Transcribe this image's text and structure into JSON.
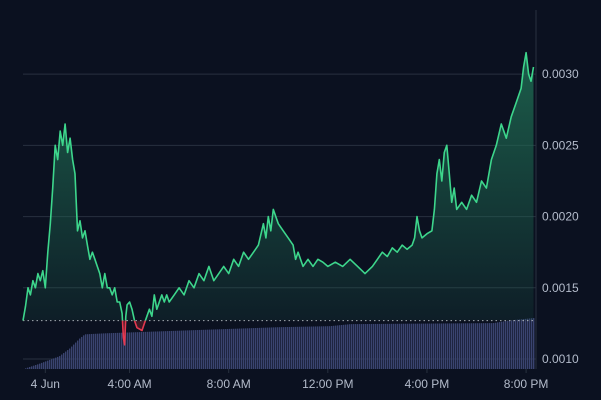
{
  "chart_data": {
    "type": "area",
    "baseline": 0.00127,
    "colors": {
      "background": "#0b1120",
      "grid": "#28313f",
      "line_up": "#3dd68c",
      "line_down": "#e5384f",
      "fill_up_top": "#1f6b52",
      "fill_down": "#5b1f2a",
      "baseline": "#c9ced6",
      "volume": "#3a4470",
      "tick": "#b4bccb"
    },
    "x_ticks": [
      {
        "label": "4 Jun",
        "hour": 0.6
      },
      {
        "label": "4:00 AM",
        "hour": 4.0
      },
      {
        "label": "8:00 AM",
        "hour": 8.0
      },
      {
        "label": "12:00 PM",
        "hour": 12.0
      },
      {
        "label": "4:00 PM",
        "hour": 16.0
      },
      {
        "label": "8:00 PM",
        "hour": 20.0
      }
    ],
    "x_range_hours": [
      -0.3,
      20.4
    ],
    "y_ticks": [
      "0.0030",
      "0.0025",
      "0.0020",
      "0.0015",
      "0.0010"
    ],
    "ylim": [
      0.00093,
      0.00345
    ],
    "price_series": [
      [
        -0.3,
        0.00127
      ],
      [
        -0.2,
        0.00137
      ],
      [
        -0.1,
        0.0015
      ],
      [
        0.0,
        0.00145
      ],
      [
        0.1,
        0.00155
      ],
      [
        0.2,
        0.0015
      ],
      [
        0.3,
        0.0016
      ],
      [
        0.4,
        0.00155
      ],
      [
        0.5,
        0.00162
      ],
      [
        0.6,
        0.0015
      ],
      [
        0.7,
        0.00175
      ],
      [
        0.8,
        0.00195
      ],
      [
        0.9,
        0.0022
      ],
      [
        1.0,
        0.0025
      ],
      [
        1.1,
        0.0024
      ],
      [
        1.2,
        0.0026
      ],
      [
        1.3,
        0.0025
      ],
      [
        1.4,
        0.00265
      ],
      [
        1.5,
        0.00245
      ],
      [
        1.6,
        0.00255
      ],
      [
        1.7,
        0.0024
      ],
      [
        1.8,
        0.0023
      ],
      [
        1.9,
        0.0019
      ],
      [
        2.0,
        0.00197
      ],
      [
        2.1,
        0.00185
      ],
      [
        2.2,
        0.0019
      ],
      [
        2.3,
        0.0018
      ],
      [
        2.4,
        0.0017
      ],
      [
        2.5,
        0.00175
      ],
      [
        2.6,
        0.0017
      ],
      [
        2.7,
        0.00165
      ],
      [
        2.8,
        0.0016
      ],
      [
        2.9,
        0.0015
      ],
      [
        3.0,
        0.0016
      ],
      [
        3.1,
        0.0015
      ],
      [
        3.2,
        0.0015
      ],
      [
        3.3,
        0.00145
      ],
      [
        3.4,
        0.0015
      ],
      [
        3.5,
        0.0014
      ],
      [
        3.6,
        0.0014
      ],
      [
        3.7,
        0.00132
      ],
      [
        3.75,
        0.00115
      ],
      [
        3.8,
        0.0011
      ],
      [
        3.85,
        0.0013
      ],
      [
        3.9,
        0.00138
      ],
      [
        4.0,
        0.0014
      ],
      [
        4.1,
        0.00135
      ],
      [
        4.2,
        0.00127
      ],
      [
        4.3,
        0.00122
      ],
      [
        4.4,
        0.00121
      ],
      [
        4.5,
        0.0012
      ],
      [
        4.6,
        0.00125
      ],
      [
        4.7,
        0.0013
      ],
      [
        4.8,
        0.00135
      ],
      [
        4.9,
        0.0013
      ],
      [
        5.0,
        0.00145
      ],
      [
        5.1,
        0.00135
      ],
      [
        5.2,
        0.0014
      ],
      [
        5.3,
        0.00145
      ],
      [
        5.4,
        0.0014
      ],
      [
        5.5,
        0.00145
      ],
      [
        5.6,
        0.0014
      ],
      [
        5.8,
        0.00145
      ],
      [
        6.0,
        0.0015
      ],
      [
        6.2,
        0.00145
      ],
      [
        6.4,
        0.00155
      ],
      [
        6.6,
        0.0015
      ],
      [
        6.8,
        0.0016
      ],
      [
        7.0,
        0.00155
      ],
      [
        7.2,
        0.00165
      ],
      [
        7.4,
        0.00155
      ],
      [
        7.6,
        0.0016
      ],
      [
        7.8,
        0.00165
      ],
      [
        8.0,
        0.0016
      ],
      [
        8.2,
        0.0017
      ],
      [
        8.4,
        0.00165
      ],
      [
        8.6,
        0.00175
      ],
      [
        8.8,
        0.0017
      ],
      [
        9.0,
        0.00175
      ],
      [
        9.2,
        0.0018
      ],
      [
        9.4,
        0.00195
      ],
      [
        9.5,
        0.00185
      ],
      [
        9.6,
        0.002
      ],
      [
        9.7,
        0.0019
      ],
      [
        9.8,
        0.00205
      ],
      [
        9.9,
        0.002
      ],
      [
        10.0,
        0.00195
      ],
      [
        10.2,
        0.0019
      ],
      [
        10.4,
        0.00185
      ],
      [
        10.6,
        0.0018
      ],
      [
        10.7,
        0.0017
      ],
      [
        10.8,
        0.00175
      ],
      [
        11.0,
        0.00165
      ],
      [
        11.2,
        0.0017
      ],
      [
        11.4,
        0.00165
      ],
      [
        11.6,
        0.0017
      ],
      [
        11.8,
        0.00168
      ],
      [
        12.0,
        0.00165
      ],
      [
        12.3,
        0.00168
      ],
      [
        12.6,
        0.00165
      ],
      [
        12.9,
        0.0017
      ],
      [
        13.2,
        0.00165
      ],
      [
        13.5,
        0.0016
      ],
      [
        13.8,
        0.00165
      ],
      [
        14.0,
        0.0017
      ],
      [
        14.2,
        0.00175
      ],
      [
        14.4,
        0.00172
      ],
      [
        14.6,
        0.00178
      ],
      [
        14.8,
        0.00175
      ],
      [
        15.0,
        0.0018
      ],
      [
        15.2,
        0.00177
      ],
      [
        15.4,
        0.0018
      ],
      [
        15.5,
        0.00185
      ],
      [
        15.6,
        0.002
      ],
      [
        15.7,
        0.0019
      ],
      [
        15.8,
        0.00185
      ],
      [
        16.0,
        0.00188
      ],
      [
        16.2,
        0.0019
      ],
      [
        16.3,
        0.00205
      ],
      [
        16.4,
        0.0023
      ],
      [
        16.5,
        0.0024
      ],
      [
        16.6,
        0.00225
      ],
      [
        16.7,
        0.00245
      ],
      [
        16.8,
        0.0025
      ],
      [
        16.9,
        0.0023
      ],
      [
        17.0,
        0.0021
      ],
      [
        17.1,
        0.0022
      ],
      [
        17.2,
        0.00205
      ],
      [
        17.4,
        0.0021
      ],
      [
        17.6,
        0.00205
      ],
      [
        17.8,
        0.00215
      ],
      [
        18.0,
        0.0021
      ],
      [
        18.2,
        0.00225
      ],
      [
        18.4,
        0.0022
      ],
      [
        18.6,
        0.0024
      ],
      [
        18.8,
        0.0025
      ],
      [
        19.0,
        0.00265
      ],
      [
        19.2,
        0.00255
      ],
      [
        19.4,
        0.0027
      ],
      [
        19.6,
        0.0028
      ],
      [
        19.8,
        0.0029
      ],
      [
        19.9,
        0.00305
      ],
      [
        20.0,
        0.00315
      ],
      [
        20.1,
        0.003
      ],
      [
        20.2,
        0.00295
      ],
      [
        20.3,
        0.00305
      ]
    ],
    "volume_series": {
      "start_hour": -0.3,
      "end_hour": 20.3,
      "profile": [
        [
          0.0,
          0.0
        ],
        [
          0.03,
          0.1
        ],
        [
          0.07,
          0.25
        ],
        [
          0.09,
          0.4
        ],
        [
          0.11,
          0.6
        ],
        [
          0.12,
          0.68
        ],
        [
          0.16,
          0.7
        ],
        [
          0.3,
          0.75
        ],
        [
          0.5,
          0.82
        ],
        [
          0.6,
          0.84
        ],
        [
          0.64,
          0.88
        ],
        [
          0.92,
          0.9
        ],
        [
          0.95,
          0.95
        ],
        [
          1.0,
          1.0
        ]
      ]
    }
  }
}
